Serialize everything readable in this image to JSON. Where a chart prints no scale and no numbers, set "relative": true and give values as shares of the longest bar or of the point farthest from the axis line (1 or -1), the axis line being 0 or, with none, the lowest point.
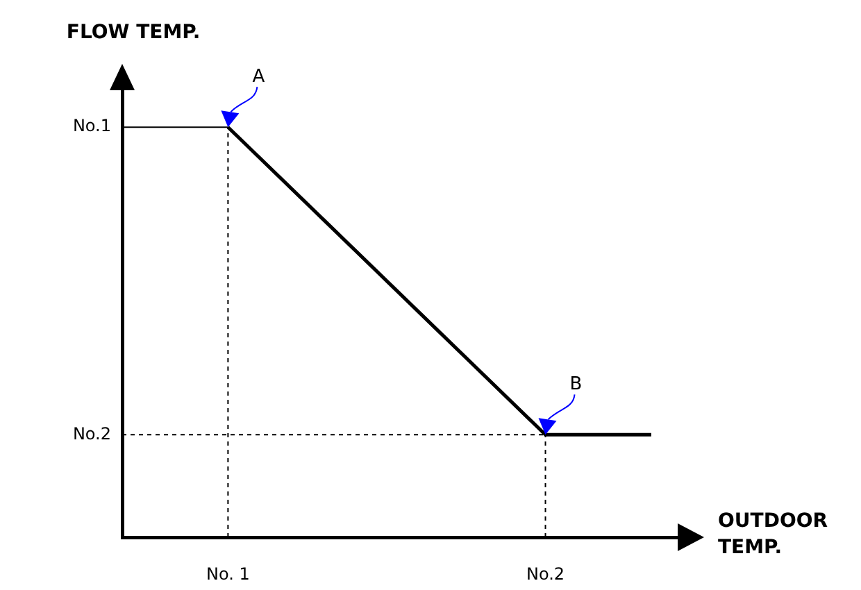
{
  "chart_data": {
    "type": "line",
    "relative": true,
    "xlabel": "OUTDOOR TEMP.",
    "ylabel": "FLOW TEMP.",
    "categories": [
      null,
      "No. 1",
      null,
      null,
      "No.2",
      null
    ],
    "series": [
      {
        "color": "#000000",
        "values": [
          null,
          1,
          0.75,
          0.5,
          0.25,
          0.25
        ]
      }
    ],
    "ref_lines": [
      {
        "axis": "y",
        "value": 1,
        "label": "No.1",
        "color": "#000000",
        "line_style": "solid"
      },
      {
        "axis": "y",
        "value": 0.25,
        "label": "No.2",
        "color": "#000000",
        "line_style": "dashed"
      },
      {
        "axis": "x",
        "value": "No. 1",
        "color": "#000000",
        "line_style": "dashed"
      },
      {
        "axis": "x",
        "value": "No.2",
        "color": "#000000",
        "line_style": "dashed"
      }
    ],
    "annotations": [
      {
        "text": "A",
        "x": "No. 1",
        "y": 1
      },
      {
        "text": "B",
        "x": "No.2",
        "y": 0.25
      }
    ]
  }
}
